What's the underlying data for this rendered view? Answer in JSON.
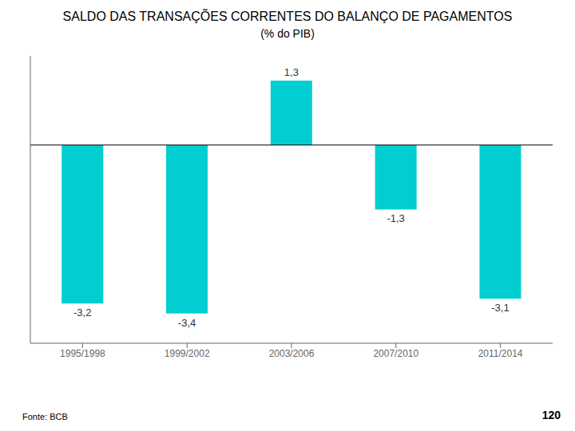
{
  "chart_data": {
    "type": "bar",
    "title": "SALDO DAS TRANSAÇÕES CORRENTES DO BALANÇO DE PAGAMENTOS",
    "subtitle": "(% do PIB)",
    "categories": [
      "1995/1998",
      "1999/2002",
      "2003/2006",
      "2007/2010",
      "2011/2014"
    ],
    "values": [
      -3.2,
      -3.4,
      1.3,
      -1.3,
      -3.1
    ],
    "value_labels": [
      "-3,2",
      "-3,4",
      "1,3",
      "-1,3",
      "-3,1"
    ],
    "data_labels": true,
    "color": "#00CED1",
    "ylim": [
      -4.0,
      1.8
    ],
    "grid": false,
    "tick_labels": "x",
    "annotations": [
      "Fonte: BCB",
      "120"
    ]
  }
}
